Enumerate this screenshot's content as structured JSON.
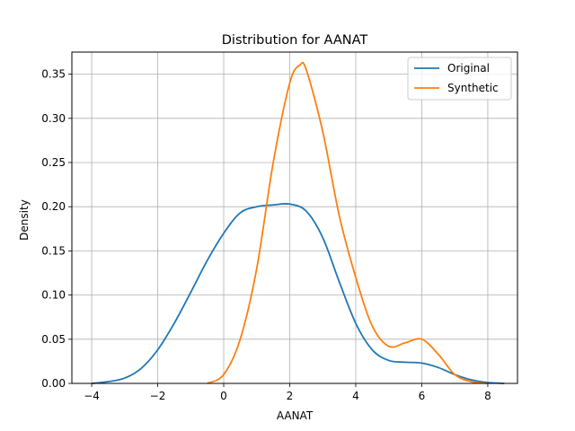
{
  "chart_data": {
    "type": "line",
    "title": "Distribution for AANAT",
    "xlabel": "AANAT",
    "ylabel": "Density",
    "xlim": [
      -4.6,
      8.9
    ],
    "ylim": [
      0,
      0.375
    ],
    "xticks": [
      -4,
      -2,
      0,
      2,
      4,
      6,
      8
    ],
    "xtick_labels": [
      "−4",
      "−2",
      "0",
      "2",
      "4",
      "6",
      "8"
    ],
    "yticks": [
      0.0,
      0.05,
      0.1,
      0.15,
      0.2,
      0.25,
      0.3,
      0.35
    ],
    "ytick_labels": [
      "0.00",
      "0.05",
      "0.10",
      "0.15",
      "0.20",
      "0.25",
      "0.30",
      "0.35"
    ],
    "grid": true,
    "legend_position": "top-right",
    "series": [
      {
        "name": "Original",
        "color": "#1f77b4",
        "x": [
          -4.0,
          -3.5,
          -3.0,
          -2.5,
          -2.0,
          -1.5,
          -1.0,
          -0.5,
          0.0,
          0.5,
          1.0,
          1.5,
          2.0,
          2.5,
          3.0,
          3.5,
          4.0,
          4.5,
          5.0,
          5.5,
          6.0,
          6.5,
          7.0,
          7.5,
          8.0,
          8.5
        ],
        "y": [
          0.0,
          0.002,
          0.006,
          0.017,
          0.038,
          0.068,
          0.103,
          0.139,
          0.17,
          0.193,
          0.2,
          0.202,
          0.203,
          0.195,
          0.165,
          0.115,
          0.068,
          0.038,
          0.026,
          0.024,
          0.023,
          0.018,
          0.01,
          0.004,
          0.001,
          0.0
        ]
      },
      {
        "name": "Synthetic",
        "color": "#ff7f0e",
        "x": [
          -0.5,
          0.0,
          0.5,
          1.0,
          1.5,
          2.0,
          2.3,
          2.5,
          3.0,
          3.5,
          4.0,
          4.5,
          5.0,
          5.5,
          6.0,
          6.5,
          7.0,
          7.5,
          8.0
        ],
        "y": [
          0.0,
          0.01,
          0.05,
          0.13,
          0.25,
          0.34,
          0.36,
          0.355,
          0.285,
          0.19,
          0.12,
          0.065,
          0.042,
          0.046,
          0.05,
          0.033,
          0.01,
          0.002,
          0.0
        ]
      }
    ]
  }
}
